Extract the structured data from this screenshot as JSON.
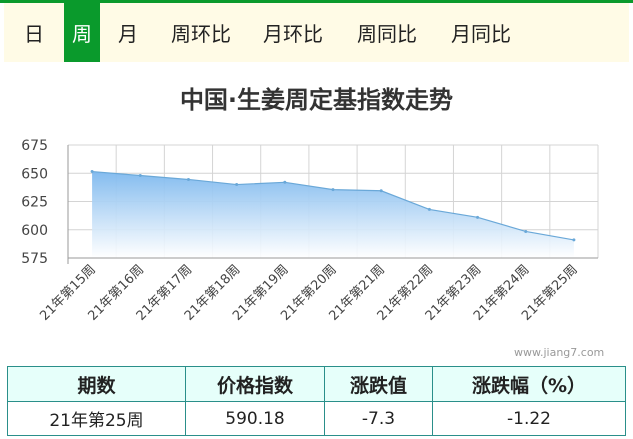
{
  "tabs": [
    {
      "label": "日",
      "active": false
    },
    {
      "label": "周",
      "active": true
    },
    {
      "label": "月",
      "active": false
    },
    {
      "label": "周环比",
      "active": false
    },
    {
      "label": "月环比",
      "active": false
    },
    {
      "label": "周同比",
      "active": false
    },
    {
      "label": "月同比",
      "active": false
    }
  ],
  "colors": {
    "accent": "#0a9a2c",
    "tab_bar_bg": "#fffbe6",
    "line": "#6aa8d8",
    "area_top": "#7db8ee",
    "table_header_bg": "#e6fffa",
    "table_border": "#2a8f8a"
  },
  "chart_data": {
    "type": "area",
    "title": "中国·生姜周定基指数走势",
    "categories": [
      "21年第15周",
      "21年第16周",
      "21年第17周",
      "21年第18周",
      "21年第19周",
      "21年第20周",
      "21年第21周",
      "21年第22周",
      "21年第23周",
      "21年第24周",
      "21年第25周"
    ],
    "values": [
      651.5,
      648,
      644.5,
      640,
      642,
      635.5,
      634.5,
      618,
      611,
      598.5,
      591
    ],
    "ylim": [
      575,
      675
    ],
    "yticks": [
      575,
      600,
      625,
      650,
      675
    ],
    "grid": true,
    "xlabel": "",
    "ylabel": ""
  },
  "watermark": "www.jiang7.com",
  "table": {
    "headers": [
      "期数",
      "价格指数",
      "涨跌值",
      "涨跌幅（%）"
    ],
    "row": [
      "21年第25周",
      "590.18",
      "-7.3",
      "-1.22"
    ]
  }
}
